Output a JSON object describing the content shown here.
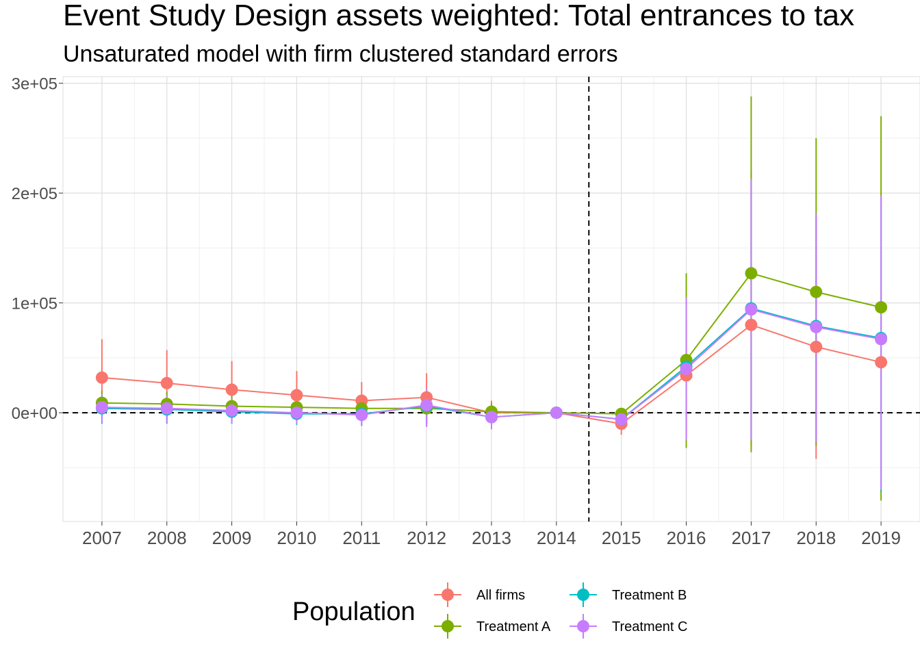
{
  "chart_data": {
    "type": "line",
    "title": "Event Study Design assets weighted: Total entrances to tax",
    "subtitle": "Unsaturated model with firm clustered standard errors",
    "xlabel": "",
    "ylabel": "",
    "x": [
      2007,
      2008,
      2009,
      2010,
      2011,
      2012,
      2013,
      2014,
      2015,
      2016,
      2017,
      2018,
      2019
    ],
    "xlim": [
      2006.4,
      2019.6
    ],
    "ylim": [
      -99000,
      306000
    ],
    "yticks": [
      0,
      100000,
      200000,
      300000
    ],
    "ytick_labels": [
      "0e+00",
      "1e+05",
      "2e+05",
      "3e+05"
    ],
    "reference_lines": {
      "hline_y": 0,
      "vline_x": 2014.5,
      "style": "dashed"
    },
    "grid": true,
    "legend": {
      "title": "Population",
      "position": "bottom"
    },
    "series": [
      {
        "name": "All firms",
        "color": "#F8766D",
        "values": [
          32000,
          27000,
          21000,
          16000,
          11000,
          14000,
          0,
          0,
          -10000,
          34000,
          80000,
          60000,
          46000
        ],
        "ci_low": [
          -3000,
          -3000,
          -5000,
          -6000,
          -6000,
          -8000,
          -10000,
          0,
          -20000,
          -20000,
          -30000,
          -42000,
          -60000
        ],
        "ci_high": [
          67000,
          57000,
          47000,
          38000,
          28000,
          36000,
          11000,
          0,
          -1000,
          85000,
          220000,
          180000,
          200000
        ]
      },
      {
        "name": "Treatment A",
        "color": "#7CAE00",
        "values": [
          9000,
          8000,
          6000,
          5000,
          4000,
          4000,
          1000,
          0,
          -1000,
          48000,
          127000,
          110000,
          96000
        ],
        "ci_low": [
          -5000,
          -6000,
          -6000,
          -7000,
          -8000,
          -10000,
          -8000,
          0,
          -6000,
          -32000,
          -36000,
          -30000,
          -80000
        ],
        "ci_high": [
          20000,
          19000,
          17000,
          16000,
          15000,
          17000,
          9000,
          0,
          3000,
          127000,
          288000,
          250000,
          270000
        ]
      },
      {
        "name": "Treatment B",
        "color": "#00BFC4",
        "values": [
          4000,
          3000,
          1000,
          -1000,
          -1000,
          6000,
          -4000,
          0,
          -6000,
          42000,
          95000,
          79000,
          68000
        ],
        "ci_low": [
          -10000,
          -10000,
          -10000,
          -11000,
          -12000,
          -12000,
          -15000,
          0,
          -14000,
          -25000,
          -24000,
          -26000,
          -72000
        ],
        "ci_high": [
          16000,
          15000,
          13000,
          11000,
          10000,
          20000,
          6000,
          0,
          2000,
          105000,
          212000,
          180000,
          196000
        ]
      },
      {
        "name": "Treatment C",
        "color": "#C77CFF",
        "values": [
          5000,
          4000,
          2000,
          0,
          -2000,
          7000,
          -4000,
          0,
          -6000,
          40000,
          94000,
          78000,
          67000
        ],
        "ci_low": [
          -9000,
          -9000,
          -10000,
          -10000,
          -12000,
          -13000,
          -15000,
          0,
          -15000,
          -25000,
          -25000,
          -27000,
          -70000
        ],
        "ci_high": [
          17000,
          16000,
          13000,
          11000,
          9000,
          22000,
          6000,
          0,
          2000,
          105000,
          213000,
          181000,
          198000
        ]
      }
    ]
  }
}
